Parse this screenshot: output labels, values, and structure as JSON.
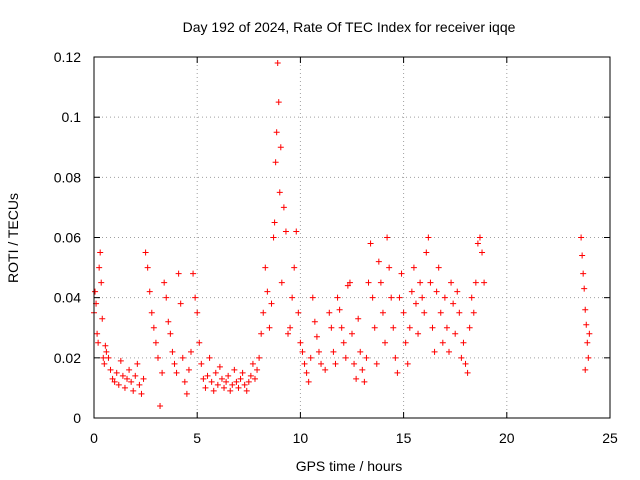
{
  "chart_data": {
    "type": "scatter",
    "title": "Day 192 of 2024, Rate Of TEC Index for receiver iqqe",
    "xlabel": "GPS time / hours",
    "ylabel": "ROTI / TECUs",
    "xlim": [
      0,
      25
    ],
    "ylim": [
      0,
      0.12
    ],
    "x_ticks": [
      {
        "value": 0,
        "label": "0"
      },
      {
        "value": 5,
        "label": "5"
      },
      {
        "value": 10,
        "label": "10"
      },
      {
        "value": 15,
        "label": "15"
      },
      {
        "value": 20,
        "label": "20"
      },
      {
        "value": 25,
        "label": "25"
      }
    ],
    "y_ticks": [
      {
        "value": 0,
        "label": "0"
      },
      {
        "value": 0.02,
        "label": "0.02"
      },
      {
        "value": 0.04,
        "label": "0.04"
      },
      {
        "value": 0.06,
        "label": "0.06"
      },
      {
        "value": 0.08,
        "label": "0.08"
      },
      {
        "value": 0.1,
        "label": "0.1"
      },
      {
        "value": 0.12,
        "label": "0.12"
      }
    ],
    "grid": true,
    "marker": "+",
    "color": "#ff0000",
    "series": [
      {
        "name": "",
        "points": [
          [
            0.0,
            0.035
          ],
          [
            0.05,
            0.042
          ],
          [
            0.1,
            0.038
          ],
          [
            0.15,
            0.028
          ],
          [
            0.2,
            0.025
          ],
          [
            0.25,
            0.05
          ],
          [
            0.3,
            0.055
          ],
          [
            0.35,
            0.045
          ],
          [
            0.4,
            0.033
          ],
          [
            0.45,
            0.02
          ],
          [
            0.5,
            0.018
          ],
          [
            0.55,
            0.024
          ],
          [
            0.6,
            0.022
          ],
          [
            0.7,
            0.02
          ],
          [
            0.8,
            0.016
          ],
          [
            0.9,
            0.013
          ],
          [
            1.0,
            0.012
          ],
          [
            1.1,
            0.015
          ],
          [
            1.2,
            0.011
          ],
          [
            1.3,
            0.019
          ],
          [
            1.4,
            0.014
          ],
          [
            1.5,
            0.01
          ],
          [
            1.6,
            0.013
          ],
          [
            1.7,
            0.016
          ],
          [
            1.8,
            0.012
          ],
          [
            1.9,
            0.009
          ],
          [
            2.0,
            0.014
          ],
          [
            2.1,
            0.018
          ],
          [
            2.2,
            0.011
          ],
          [
            2.3,
            0.008
          ],
          [
            2.4,
            0.013
          ],
          [
            2.5,
            0.055
          ],
          [
            2.6,
            0.05
          ],
          [
            2.7,
            0.042
          ],
          [
            2.8,
            0.035
          ],
          [
            2.9,
            0.03
          ],
          [
            3.0,
            0.025
          ],
          [
            3.1,
            0.02
          ],
          [
            3.2,
            0.004
          ],
          [
            3.3,
            0.015
          ],
          [
            3.4,
            0.045
          ],
          [
            3.5,
            0.04
          ],
          [
            3.6,
            0.032
          ],
          [
            3.7,
            0.028
          ],
          [
            3.8,
            0.022
          ],
          [
            3.9,
            0.018
          ],
          [
            4.0,
            0.015
          ],
          [
            4.1,
            0.048
          ],
          [
            4.2,
            0.038
          ],
          [
            4.3,
            0.02
          ],
          [
            4.4,
            0.012
          ],
          [
            4.5,
            0.008
          ],
          [
            4.6,
            0.016
          ],
          [
            4.7,
            0.022
          ],
          [
            4.8,
            0.048
          ],
          [
            4.9,
            0.04
          ],
          [
            5.0,
            0.035
          ],
          [
            5.1,
            0.025
          ],
          [
            5.2,
            0.018
          ],
          [
            5.3,
            0.013
          ],
          [
            5.4,
            0.01
          ],
          [
            5.5,
            0.014
          ],
          [
            5.6,
            0.02
          ],
          [
            5.7,
            0.012
          ],
          [
            5.8,
            0.009
          ],
          [
            5.9,
            0.015
          ],
          [
            6.0,
            0.011
          ],
          [
            6.1,
            0.017
          ],
          [
            6.2,
            0.013
          ],
          [
            6.3,
            0.01
          ],
          [
            6.4,
            0.012
          ],
          [
            6.5,
            0.014
          ],
          [
            6.6,
            0.009
          ],
          [
            6.7,
            0.011
          ],
          [
            6.8,
            0.016
          ],
          [
            6.9,
            0.012
          ],
          [
            7.0,
            0.01
          ],
          [
            7.1,
            0.013
          ],
          [
            7.2,
            0.015
          ],
          [
            7.3,
            0.011
          ],
          [
            7.4,
            0.009
          ],
          [
            7.5,
            0.012
          ],
          [
            7.6,
            0.014
          ],
          [
            7.7,
            0.018
          ],
          [
            7.8,
            0.013
          ],
          [
            7.9,
            0.016
          ],
          [
            8.0,
            0.02
          ],
          [
            8.1,
            0.028
          ],
          [
            8.2,
            0.035
          ],
          [
            8.3,
            0.05
          ],
          [
            8.4,
            0.042
          ],
          [
            8.5,
            0.03
          ],
          [
            8.6,
            0.038
          ],
          [
            8.7,
            0.06
          ],
          [
            8.75,
            0.065
          ],
          [
            8.8,
            0.085
          ],
          [
            8.85,
            0.095
          ],
          [
            8.9,
            0.118
          ],
          [
            8.95,
            0.105
          ],
          [
            9.0,
            0.075
          ],
          [
            9.05,
            0.09
          ],
          [
            9.1,
            0.045
          ],
          [
            9.2,
            0.07
          ],
          [
            9.3,
            0.062
          ],
          [
            9.4,
            0.028
          ],
          [
            9.5,
            0.03
          ],
          [
            9.6,
            0.04
          ],
          [
            9.7,
            0.05
          ],
          [
            9.8,
            0.062
          ],
          [
            9.9,
            0.035
          ],
          [
            10.0,
            0.025
          ],
          [
            10.1,
            0.022
          ],
          [
            10.2,
            0.018
          ],
          [
            10.3,
            0.015
          ],
          [
            10.4,
            0.012
          ],
          [
            10.5,
            0.02
          ],
          [
            10.6,
            0.04
          ],
          [
            10.7,
            0.032
          ],
          [
            10.8,
            0.027
          ],
          [
            10.9,
            0.022
          ],
          [
            11.0,
            0.018
          ],
          [
            11.2,
            0.016
          ],
          [
            11.4,
            0.035
          ],
          [
            11.5,
            0.03
          ],
          [
            11.6,
            0.022
          ],
          [
            11.7,
            0.018
          ],
          [
            11.8,
            0.04
          ],
          [
            11.9,
            0.036
          ],
          [
            12.0,
            0.03
          ],
          [
            12.1,
            0.025
          ],
          [
            12.2,
            0.02
          ],
          [
            12.3,
            0.044
          ],
          [
            12.4,
            0.045
          ],
          [
            12.5,
            0.028
          ],
          [
            12.6,
            0.018
          ],
          [
            12.7,
            0.013
          ],
          [
            12.8,
            0.033
          ],
          [
            12.9,
            0.022
          ],
          [
            13.0,
            0.016
          ],
          [
            13.1,
            0.012
          ],
          [
            13.2,
            0.02
          ],
          [
            13.3,
            0.045
          ],
          [
            13.4,
            0.058
          ],
          [
            13.5,
            0.04
          ],
          [
            13.6,
            0.03
          ],
          [
            13.7,
            0.018
          ],
          [
            13.8,
            0.052
          ],
          [
            13.9,
            0.045
          ],
          [
            14.0,
            0.035
          ],
          [
            14.1,
            0.025
          ],
          [
            14.2,
            0.06
          ],
          [
            14.3,
            0.05
          ],
          [
            14.4,
            0.04
          ],
          [
            14.5,
            0.03
          ],
          [
            14.6,
            0.02
          ],
          [
            14.7,
            0.015
          ],
          [
            14.8,
            0.04
          ],
          [
            14.9,
            0.048
          ],
          [
            15.0,
            0.035
          ],
          [
            15.1,
            0.025
          ],
          [
            15.2,
            0.018
          ],
          [
            15.3,
            0.03
          ],
          [
            15.4,
            0.042
          ],
          [
            15.5,
            0.05
          ],
          [
            15.6,
            0.038
          ],
          [
            15.7,
            0.028
          ],
          [
            15.8,
            0.045
          ],
          [
            15.9,
            0.04
          ],
          [
            16.0,
            0.035
          ],
          [
            16.1,
            0.055
          ],
          [
            16.2,
            0.06
          ],
          [
            16.3,
            0.045
          ],
          [
            16.4,
            0.03
          ],
          [
            16.5,
            0.022
          ],
          [
            16.6,
            0.042
          ],
          [
            16.7,
            0.05
          ],
          [
            16.8,
            0.035
          ],
          [
            16.9,
            0.025
          ],
          [
            17.0,
            0.04
          ],
          [
            17.1,
            0.03
          ],
          [
            17.2,
            0.022
          ],
          [
            17.3,
            0.045
          ],
          [
            17.4,
            0.038
          ],
          [
            17.5,
            0.028
          ],
          [
            17.6,
            0.042
          ],
          [
            17.7,
            0.035
          ],
          [
            17.8,
            0.02
          ],
          [
            17.9,
            0.025
          ],
          [
            18.0,
            0.018
          ],
          [
            18.1,
            0.015
          ],
          [
            18.2,
            0.03
          ],
          [
            18.3,
            0.04
          ],
          [
            18.4,
            0.035
          ],
          [
            18.5,
            0.045
          ],
          [
            18.6,
            0.058
          ],
          [
            18.7,
            0.06
          ],
          [
            18.8,
            0.055
          ],
          [
            18.9,
            0.045
          ],
          [
            23.6,
            0.06
          ],
          [
            23.65,
            0.054
          ],
          [
            23.7,
            0.048
          ],
          [
            23.75,
            0.043
          ],
          [
            23.8,
            0.036
          ],
          [
            23.85,
            0.031
          ],
          [
            23.9,
            0.025
          ],
          [
            23.95,
            0.02
          ],
          [
            24.0,
            0.028
          ],
          [
            23.8,
            0.016
          ]
        ]
      }
    ]
  }
}
